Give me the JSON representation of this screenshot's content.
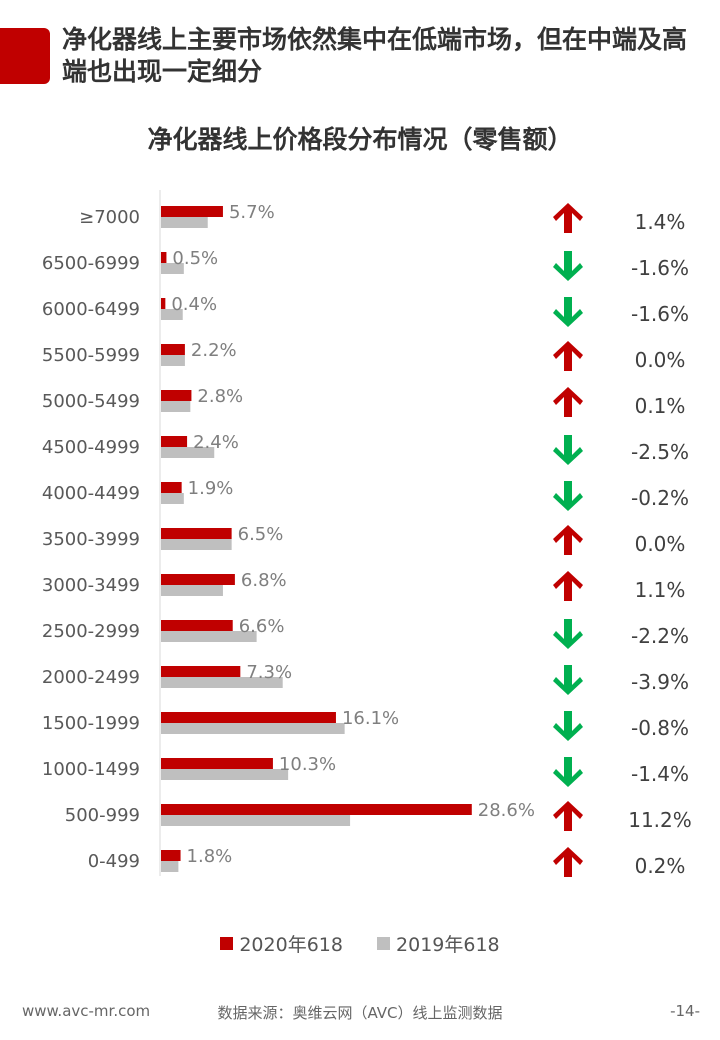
{
  "header": {
    "headline": "净化器线上主要市场依然集中在低端市场，但在中端及高端也出现一定细分"
  },
  "chart_data": {
    "type": "bar",
    "title": "净化器线上价格段分布情况（零售额）",
    "orientation": "horizontal",
    "categories": [
      "≥7000",
      "6500-6999",
      "6000-6499",
      "5500-5999",
      "5000-5499",
      "4500-4999",
      "4000-4499",
      "3500-3999",
      "3000-3499",
      "2500-2999",
      "2000-2499",
      "1500-1999",
      "1000-1499",
      "500-999",
      "0-499"
    ],
    "series": [
      {
        "name": "2020年618",
        "color": "#c00000",
        "values": [
          5.7,
          0.5,
          0.4,
          2.2,
          2.8,
          2.4,
          1.9,
          6.5,
          6.8,
          6.6,
          7.3,
          16.1,
          10.3,
          28.6,
          1.8
        ],
        "labels": [
          "5.7%",
          "0.5%",
          "0.4%",
          "2.2%",
          "2.8%",
          "2.4%",
          "1.9%",
          "6.5%",
          "6.8%",
          "6.6%",
          "7.3%",
          "16.1%",
          "10.3%",
          "28.6%",
          "1.8%"
        ]
      },
      {
        "name": "2019年618",
        "color": "#bfbfbf",
        "values": [
          4.3,
          2.1,
          2.0,
          2.2,
          2.7,
          4.9,
          2.1,
          6.5,
          5.7,
          8.8,
          11.2,
          16.9,
          11.7,
          17.4,
          1.6
        ]
      }
    ],
    "change": {
      "values": [
        "1.4%",
        "-1.6%",
        "-1.6%",
        "0.0%",
        "0.1%",
        "-2.5%",
        "-0.2%",
        "0.0%",
        "1.1%",
        "-2.2%",
        "-3.9%",
        "-0.8%",
        "-1.4%",
        "11.2%",
        "0.2%"
      ],
      "direction": [
        "up",
        "down",
        "down",
        "up",
        "up",
        "down",
        "down",
        "up",
        "up",
        "down",
        "down",
        "down",
        "down",
        "up",
        "up"
      ]
    },
    "arrow_colors": {
      "up": "#c00000",
      "down": "#00b050"
    },
    "xlim": [
      0,
      30
    ],
    "legend_position": "bottom"
  },
  "footer": {
    "website": "www.avc-mr.com",
    "source": "数据来源：奥维云网（AVC）线上监测数据",
    "page": "-14-"
  }
}
